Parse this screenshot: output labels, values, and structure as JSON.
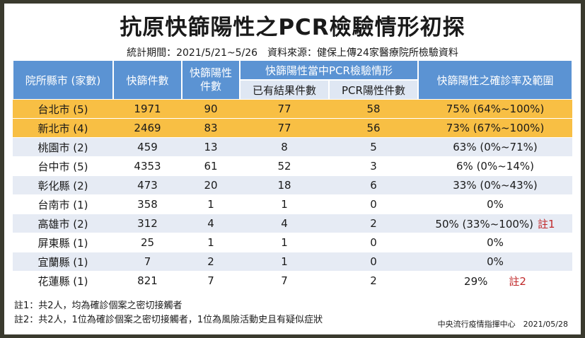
{
  "title": "抗原快篩陽性之PCR檢驗情形初探",
  "subtitle": "統計期間：2021/5/21~5/26　資料來源：健保上傳24家醫療院所檢驗資料",
  "headers": {
    "county": "院所縣市 (家數)",
    "rapid_tests": "快篩件數",
    "rapid_positive": "快篩陽性件數",
    "pcr_group": "快篩陽性當中PCR檢驗情形",
    "pcr_results": "已有結果件數",
    "pcr_positive": "PCR陽性件數",
    "confirm_rate": "快篩陽性之確診率及範圍"
  },
  "rows": [
    {
      "county": "台北市 (5)",
      "tests": "1971",
      "pos": "90",
      "results": "77",
      "pcr": "58",
      "rate": "75% (64%~100%)",
      "note": "",
      "style": "hi"
    },
    {
      "county": "新北市 (4)",
      "tests": "2469",
      "pos": "83",
      "results": "77",
      "pcr": "56",
      "rate": "73% (67%~100%)",
      "note": "",
      "style": "hi"
    },
    {
      "county": "桃園市 (2)",
      "tests": "459",
      "pos": "13",
      "results": "8",
      "pcr": "5",
      "rate": "63% (0%~71%)",
      "note": "",
      "style": "a"
    },
    {
      "county": "台中市 (5)",
      "tests": "4353",
      "pos": "61",
      "results": "52",
      "pcr": "3",
      "rate": "6% (0%~14%)",
      "note": "",
      "style": "b"
    },
    {
      "county": "彰化縣 (2)",
      "tests": "473",
      "pos": "20",
      "results": "18",
      "pcr": "6",
      "rate": "33% (0%~43%)",
      "note": "",
      "style": "a"
    },
    {
      "county": "台南市 (1)",
      "tests": "358",
      "pos": "1",
      "results": "1",
      "pcr": "0",
      "rate": "0%",
      "note": "",
      "style": "b"
    },
    {
      "county": "高雄市 (2)",
      "tests": "312",
      "pos": "4",
      "results": "4",
      "pcr": "2",
      "rate": "50% (33%~100%)",
      "note": "註1",
      "style": "a"
    },
    {
      "county": "屏東縣 (1)",
      "tests": "25",
      "pos": "1",
      "results": "1",
      "pcr": "0",
      "rate": "0%",
      "note": "",
      "style": "b"
    },
    {
      "county": "宜蘭縣 (1)",
      "tests": "7",
      "pos": "2",
      "results": "1",
      "pcr": "0",
      "rate": "0%",
      "note": "",
      "style": "a"
    },
    {
      "county": "花蓮縣 (1)",
      "tests": "821",
      "pos": "7",
      "results": "7",
      "pcr": "2",
      "rate": "29%",
      "note": "註2",
      "style": "b"
    }
  ],
  "notes": [
    "註1：共2人，均為確診個案之密切接觸者",
    "註2：共2人，1位為確診個案之密切接觸者，1位為風險活動史且有疑似症狀"
  ],
  "source": "中央流行疫情指揮中心　2021/05/28"
}
